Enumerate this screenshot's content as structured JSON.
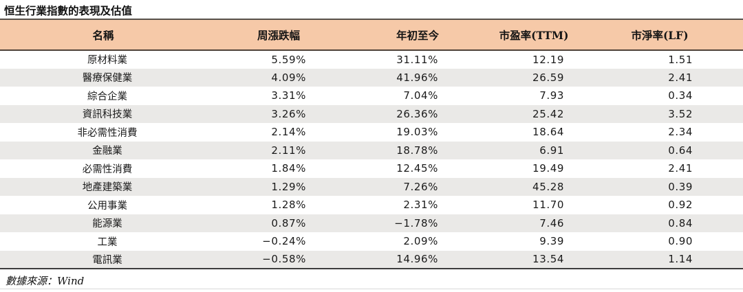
{
  "title": "恒生行業指數的表現及估值",
  "source_note": "數據來源：Wind",
  "colors": {
    "header_bg": "#F6C9A8",
    "alt_row_bg": "#EAE9E7",
    "rule_dark": "#4E4138",
    "rule_light": "#D8D8D8"
  },
  "table": {
    "columns": [
      "名稱",
      "周漲跌幅",
      "年初至今",
      "市盈率(TTM)",
      "市淨率(LF)"
    ],
    "rows": [
      {
        "name": "原材料業",
        "weekly_change": "5.59%",
        "ytd": "31.11%",
        "pe_ttm": "12.19",
        "pb_lf": "1.51"
      },
      {
        "name": "醫療保健業",
        "weekly_change": "4.09%",
        "ytd": "41.96%",
        "pe_ttm": "26.59",
        "pb_lf": "2.41"
      },
      {
        "name": "綜合企業",
        "weekly_change": "3.31%",
        "ytd": "7.04%",
        "pe_ttm": "7.93",
        "pb_lf": "0.34"
      },
      {
        "name": "資訊科技業",
        "weekly_change": "3.26%",
        "ytd": "26.36%",
        "pe_ttm": "25.42",
        "pb_lf": "3.52"
      },
      {
        "name": "非必需性消費",
        "weekly_change": "2.14%",
        "ytd": "19.03%",
        "pe_ttm": "18.64",
        "pb_lf": "2.34"
      },
      {
        "name": "金融業",
        "weekly_change": "2.11%",
        "ytd": "18.78%",
        "pe_ttm": "6.91",
        "pb_lf": "0.64"
      },
      {
        "name": "必需性消費",
        "weekly_change": "1.84%",
        "ytd": "12.45%",
        "pe_ttm": "19.49",
        "pb_lf": "2.41"
      },
      {
        "name": "地產建築業",
        "weekly_change": "1.29%",
        "ytd": "7.26%",
        "pe_ttm": "45.28",
        "pb_lf": "0.39"
      },
      {
        "name": "公用事業",
        "weekly_change": "1.28%",
        "ytd": "2.31%",
        "pe_ttm": "11.70",
        "pb_lf": "0.92"
      },
      {
        "name": "能源業",
        "weekly_change": "0.87%",
        "ytd": "−1.78%",
        "pe_ttm": "7.46",
        "pb_lf": "0.84"
      },
      {
        "name": "工業",
        "weekly_change": "−0.24%",
        "ytd": "2.09%",
        "pe_ttm": "9.39",
        "pb_lf": "0.90"
      },
      {
        "name": "電訊業",
        "weekly_change": "−0.58%",
        "ytd": "14.96%",
        "pe_ttm": "13.54",
        "pb_lf": "1.14"
      }
    ]
  }
}
